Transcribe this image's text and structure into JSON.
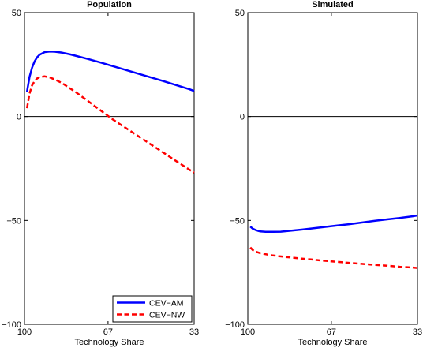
{
  "chart_data": [
    {
      "type": "line",
      "title": "Population",
      "xlabel": "Technology Share",
      "ylabel": "",
      "xlim": [
        100,
        33
      ],
      "ylim": [
        -100,
        50
      ],
      "xticks": [
        100,
        67,
        33
      ],
      "yticks": [
        50,
        0,
        -50,
        -100
      ],
      "x_axis_reversed": true,
      "zero_line": true,
      "grid": false,
      "legend": "bottom-right",
      "series": [
        {
          "name": "CEV−AM",
          "color": "#0000ff",
          "style": "solid",
          "x": [
            99,
            98,
            97,
            96,
            95,
            94,
            92,
            90,
            88,
            85,
            82,
            80,
            75,
            70,
            65,
            60,
            55,
            50,
            45,
            40,
            35,
            33
          ],
          "y": [
            12,
            19,
            23.5,
            26.5,
            28.5,
            29.8,
            31,
            31.3,
            31.2,
            30.7,
            29.9,
            29.3,
            27.7,
            26,
            24.2,
            22.4,
            20.6,
            18.8,
            17,
            15.1,
            13.2,
            12.3
          ]
        },
        {
          "name": "CEV−NW",
          "color": "#ff0000",
          "style": "dashed",
          "x": [
            99,
            98,
            97,
            96,
            95,
            94,
            92,
            90,
            88,
            85,
            82,
            80,
            75,
            70,
            65,
            60,
            55,
            50,
            45,
            40,
            35,
            33
          ],
          "y": [
            4,
            11,
            15,
            17,
            18.3,
            19,
            19.3,
            18.8,
            17.8,
            16,
            13.5,
            12,
            7.5,
            3,
            -1.5,
            -5.5,
            -9.5,
            -13.5,
            -17.5,
            -21.5,
            -25.5,
            -27
          ]
        }
      ]
    },
    {
      "type": "line",
      "title": "Simulated",
      "xlabel": "Technology Share",
      "ylabel": "",
      "xlim": [
        100,
        33
      ],
      "ylim": [
        -100,
        50
      ],
      "xticks": [
        100,
        67,
        33
      ],
      "yticks": [
        50,
        0,
        -50,
        -100
      ],
      "x_axis_reversed": true,
      "zero_line": true,
      "grid": false,
      "series": [
        {
          "color": "#0000ff",
          "style": "solid",
          "x": [
            99,
            98,
            97,
            96,
            95,
            93,
            90,
            87,
            85,
            80,
            75,
            70,
            65,
            60,
            55,
            50,
            45,
            40,
            35,
            33
          ],
          "y": [
            -53,
            -54,
            -54.6,
            -55,
            -55.3,
            -55.5,
            -55.5,
            -55.4,
            -55.2,
            -54.6,
            -53.9,
            -53.2,
            -52.5,
            -51.8,
            -51,
            -50.2,
            -49.5,
            -48.8,
            -48,
            -47.6
          ]
        },
        {
          "color": "#ff0000",
          "style": "dashed",
          "x": [
            99,
            98,
            97,
            95,
            92,
            90,
            85,
            80,
            75,
            70,
            65,
            60,
            55,
            50,
            45,
            40,
            35,
            33
          ],
          "y": [
            -63,
            -64.3,
            -65,
            -65.8,
            -66.5,
            -66.9,
            -67.6,
            -68.2,
            -68.8,
            -69.4,
            -69.9,
            -70.4,
            -70.9,
            -71.4,
            -71.8,
            -72.3,
            -72.7,
            -72.9
          ]
        }
      ]
    }
  ]
}
